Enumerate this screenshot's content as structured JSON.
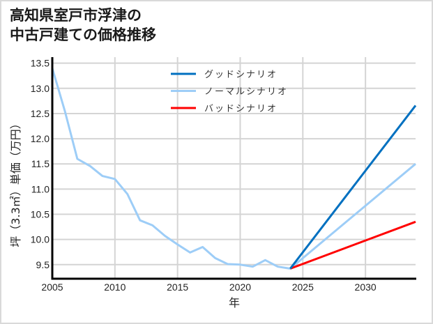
{
  "title": "高知県室戸市浮津の\n中古戸建ての価格推移",
  "chart_data": {
    "type": "line",
    "title": "高知県室戸市浮津の中古戸建ての価格推移",
    "xlabel": "年",
    "ylabel": "坪（3.3㎡）単価（万円）",
    "xlim": [
      2005,
      2034
    ],
    "ylim": [
      9.22,
      13.62
    ],
    "xticks": [
      2005,
      2010,
      2015,
      2020,
      2025,
      2030
    ],
    "yticks": [
      9.5,
      10.0,
      10.5,
      11.0,
      11.5,
      12.0,
      12.5,
      13.0,
      13.5
    ],
    "ytick_labels": [
      "9.5",
      "10.0",
      "10.5",
      "11.0",
      "11.5",
      "12.0",
      "12.5",
      "13.0",
      "13.5"
    ],
    "grid": true,
    "legend_position": "upper center",
    "series": [
      {
        "name": "グッドシナリオ",
        "color": "#0070c0",
        "x": [
          2024,
          2034
        ],
        "values": [
          9.42,
          12.66
        ]
      },
      {
        "name": "ノーマルシナリオ",
        "color": "#9dcdf7",
        "x": [
          2005,
          2006,
          2007,
          2008,
          2009,
          2010,
          2011,
          2012,
          2013,
          2014,
          2015,
          2016,
          2017,
          2018,
          2019,
          2020,
          2021,
          2022,
          2023,
          2024,
          2034
        ],
        "values": [
          13.4,
          12.55,
          11.6,
          11.46,
          11.26,
          11.2,
          10.9,
          10.38,
          10.28,
          10.07,
          9.9,
          9.74,
          9.85,
          9.63,
          9.51,
          9.5,
          9.46,
          9.59,
          9.46,
          9.42,
          11.5
        ]
      },
      {
        "name": "バッドシナリオ",
        "color": "#ff0000",
        "x": [
          2024,
          2034
        ],
        "values": [
          9.42,
          10.35
        ]
      }
    ]
  }
}
